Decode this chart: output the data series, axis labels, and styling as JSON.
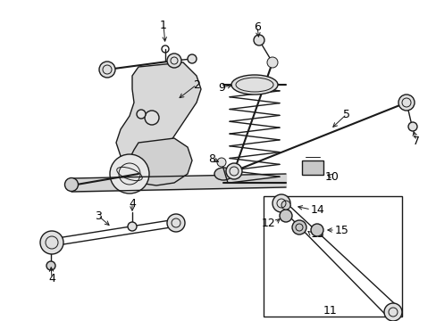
{
  "bg_color": "#ffffff",
  "line_color": "#1a1a1a",
  "fig_width": 4.89,
  "fig_height": 3.6,
  "dpi": 100,
  "spring_color": "#2a2a2a",
  "part_fill": "#e8e8e8",
  "part_edge": "#1a1a1a"
}
